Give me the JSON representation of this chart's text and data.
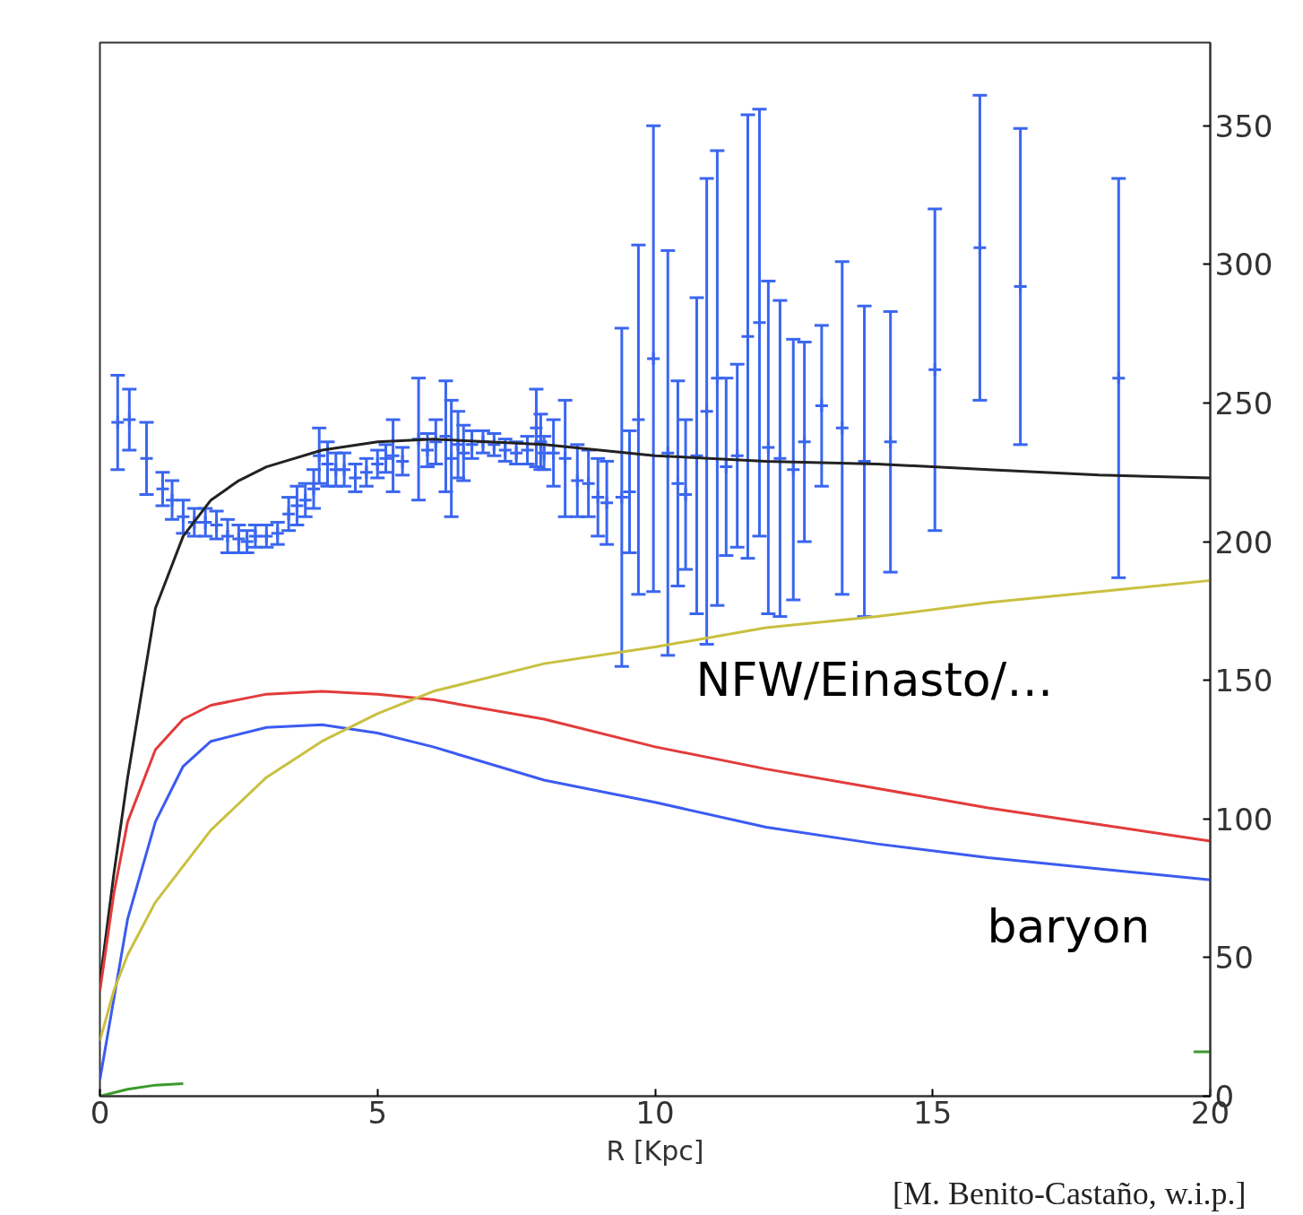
{
  "chart_data": {
    "type": "line",
    "xlabel": "R [Kpc]",
    "xlim": [
      0,
      20
    ],
    "ylim": [
      0,
      380
    ],
    "xticks": [
      0,
      5,
      10,
      15,
      20
    ],
    "yticks": [
      0,
      50,
      100,
      150,
      200,
      250,
      300,
      350
    ],
    "grid": false,
    "series": [
      {
        "type": "scatter",
        "marker": "cross",
        "color": "#3a66f0",
        "x": [
          0.32,
          0.53,
          0.84,
          1.13,
          1.3,
          1.5,
          1.7,
          1.9,
          2.1,
          2.3,
          2.5,
          2.65,
          2.8,
          3.0,
          3.2,
          3.4,
          3.55,
          3.7,
          3.85,
          3.95,
          4.1,
          4.25,
          4.4,
          4.6,
          4.8,
          5.0,
          5.15,
          5.28,
          5.45,
          5.74,
          5.9,
          6.05,
          6.23,
          6.33,
          6.45,
          6.55,
          6.7,
          6.9,
          7.1,
          7.3,
          7.5,
          7.7,
          7.86,
          7.94,
          8.0,
          8.17,
          8.38,
          8.6,
          8.8,
          8.97,
          9.13,
          9.4,
          9.54,
          9.7,
          9.97,
          10.23,
          10.41,
          10.55,
          10.75,
          10.93,
          11.12,
          11.28,
          11.48,
          11.67,
          11.88,
          12.04,
          12.25,
          12.49,
          12.69,
          13.0,
          13.37,
          13.77,
          14.24,
          15.04,
          15.85,
          16.58,
          18.35
        ],
        "values": [
          243,
          244,
          230,
          219,
          215,
          209,
          207,
          207,
          206,
          202,
          201,
          200,
          202,
          202,
          203,
          210,
          213,
          215,
          219,
          231,
          228,
          226,
          226,
          223,
          225,
          228,
          230,
          231,
          229,
          237,
          233,
          236,
          238,
          230,
          235,
          232,
          235,
          236,
          235,
          233,
          232,
          233,
          241,
          236,
          232,
          232,
          230,
          222,
          221,
          216,
          214,
          216,
          218,
          244,
          266,
          232,
          221,
          217,
          231,
          247,
          259,
          227,
          231,
          274,
          279,
          234,
          230,
          226,
          236,
          249,
          241,
          229,
          236,
          262,
          306,
          292,
          259
        ],
        "errors": [
          17,
          11,
          13,
          6,
          7,
          6,
          5,
          5,
          5,
          6,
          5,
          4,
          4,
          4,
          4,
          6,
          7,
          6,
          7,
          10,
          8,
          6,
          6,
          5,
          5,
          5,
          5,
          13,
          5,
          22,
          6,
          8,
          20,
          21,
          12,
          10,
          5,
          4,
          4,
          4,
          4,
          5,
          14,
          10,
          6,
          12,
          21,
          13,
          12,
          14,
          15,
          61,
          22,
          63,
          84,
          73,
          37,
          27,
          57,
          84,
          82,
          32,
          33,
          80,
          77,
          60,
          57,
          47,
          36,
          29,
          60,
          56,
          47,
          58,
          55,
          57,
          72
        ]
      },
      {
        "color": "#222222",
        "line_style": "solid",
        "x": [
          0,
          0.25,
          0.5,
          1,
          1.5,
          2,
          2.5,
          3,
          4,
          5,
          6,
          7,
          8,
          10,
          12,
          14,
          16,
          18,
          20
        ],
        "values": [
          41,
          80,
          115,
          176,
          202,
          215,
          222,
          227,
          233,
          236,
          237,
          236,
          235,
          231,
          229,
          228,
          226,
          224,
          223
        ]
      },
      {
        "color": "#e23b3b",
        "line_style": "solid",
        "x": [
          0,
          0.25,
          0.5,
          1,
          1.5,
          2,
          3,
          4,
          5,
          6,
          8,
          10,
          12,
          14,
          16,
          18,
          20
        ],
        "values": [
          38,
          73,
          99,
          125,
          136,
          141,
          145,
          146,
          145,
          143,
          136,
          126,
          118,
          111,
          104,
          98,
          92
        ]
      },
      {
        "color": "#3b5bf0",
        "line_style": "solid",
        "x": [
          0,
          0.25,
          0.5,
          1,
          1.5,
          2,
          3,
          4,
          5,
          6,
          8,
          10,
          12,
          14,
          16,
          18,
          20
        ],
        "values": [
          6,
          35,
          64,
          99,
          119,
          128,
          133,
          134,
          131,
          126,
          114,
          106,
          97,
          91,
          86,
          82,
          78
        ]
      },
      {
        "color": "#c9c040",
        "line_style": "solid",
        "x": [
          0,
          0.25,
          0.5,
          1,
          2,
          3,
          4,
          5,
          6,
          8,
          10,
          12,
          14,
          16,
          18,
          20
        ],
        "values": [
          20,
          38,
          51,
          70,
          96,
          115,
          128,
          138,
          146,
          156,
          162,
          169,
          173,
          178,
          182,
          186
        ]
      },
      {
        "color": "#3c9a2c",
        "line_style": "solid",
        "x": [
          0,
          0.5,
          1,
          1.5,
          1.6,
          19.7,
          20
        ],
        "values": [
          0,
          2.5,
          4,
          4.5,
          null,
          16,
          16
        ]
      }
    ],
    "annotations": [
      "NFW/Einasto/…",
      "baryon",
      "[M. Benito-Castaño, w.i.p.]"
    ]
  }
}
